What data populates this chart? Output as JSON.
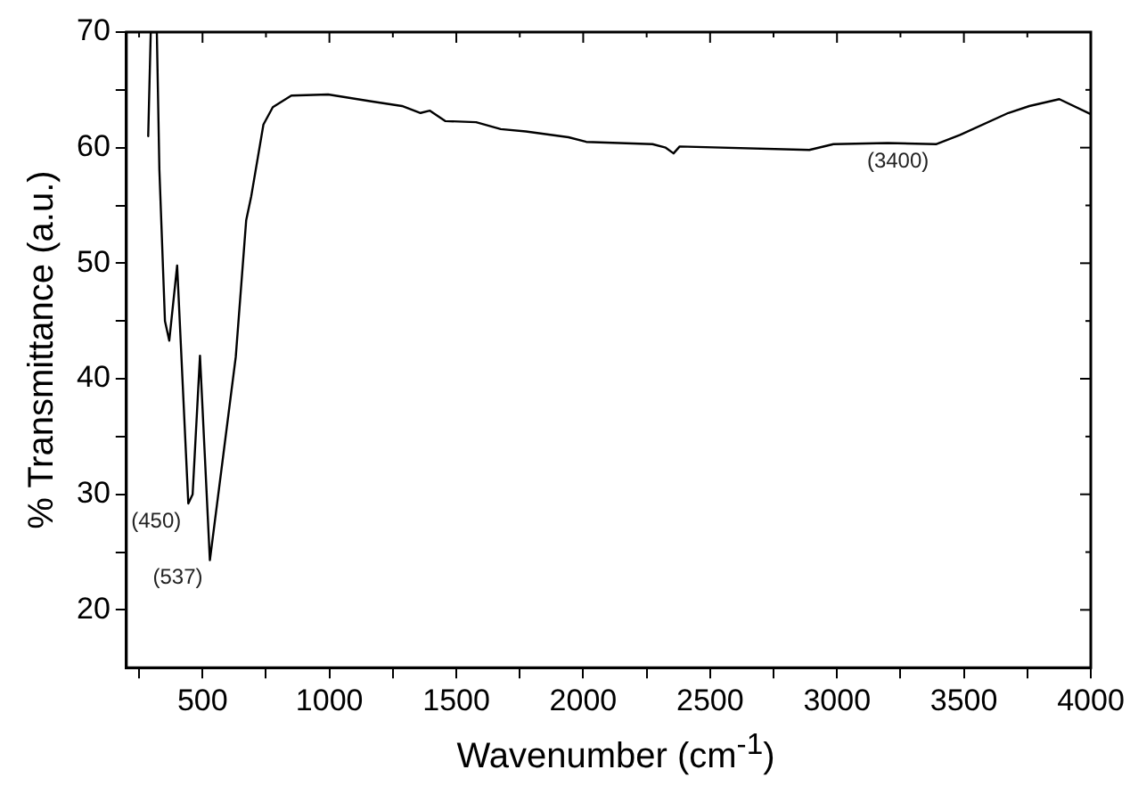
{
  "chart_data": {
    "type": "line",
    "xlabel": "Wavenumber (cm$^{-1}$)",
    "ylabel": "% Transmittance (a.u.)",
    "x": [
      286,
      296,
      320,
      330,
      352,
      369,
      400,
      444,
      461,
      490,
      529,
      583,
      631,
      672,
      692,
      740,
      777,
      850,
      995,
      1165,
      1286,
      1359,
      1396,
      1456,
      1578,
      1675,
      1774,
      1942,
      2012,
      2273,
      2325,
      2356,
      2380,
      2891,
      2986,
      3200,
      3390,
      3485,
      3675,
      3758,
      3876,
      4000
    ],
    "series": [
      {
        "color": "#000000",
        "values": [
          61,
          70,
          70,
          58.1,
          45,
          43.3,
          49.8,
          29.2,
          30,
          42,
          24.3,
          33.6,
          41.9,
          53.7,
          55.8,
          62,
          63.5,
          64.5,
          64.6,
          64,
          63.6,
          63,
          63.2,
          62.3,
          62.2,
          61.6,
          61.4,
          60.9,
          60.5,
          60.3,
          60,
          59.5,
          60.1,
          59.8,
          60.3,
          60.4,
          60.3,
          61.1,
          63,
          63.6,
          64.2,
          62.9
        ]
      }
    ],
    "xlim": [
      200,
      4000
    ],
    "xticks": [
      {
        "value": 250,
        "label": null
      },
      500,
      {
        "value": 750,
        "label": null
      },
      1000,
      {
        "value": 1250,
        "label": null
      },
      1500,
      {
        "value": 1750,
        "label": null
      },
      2000,
      {
        "value": 2250,
        "label": null
      },
      2500,
      {
        "value": 2750,
        "label": null
      },
      3000,
      {
        "value": 3250,
        "label": null
      },
      3500,
      {
        "value": 3750,
        "label": null
      },
      4000
    ],
    "ylim": [
      15,
      70
    ],
    "yticks": [
      20,
      {
        "value": 25,
        "label": null
      },
      30,
      {
        "value": 35,
        "label": null
      },
      40,
      {
        "value": 45,
        "label": null
      },
      50,
      {
        "value": 55,
        "label": null
      },
      60,
      {
        "value": 65,
        "label": null
      },
      70
    ],
    "annotations": [
      {
        "text": "(450)",
        "x": 444,
        "y": 29.2
      },
      {
        "text": "(537)",
        "x": 529,
        "y": 24.3
      },
      {
        "text": "(3400)",
        "x": 3390,
        "y": 60.3
      }
    ],
    "grid": false,
    "legend": false,
    "marker": "none",
    "line_style": "solid"
  }
}
